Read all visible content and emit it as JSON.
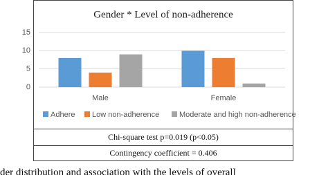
{
  "chart_data": {
    "type": "bar",
    "title": "Gender * Level of non-adherence",
    "categories": [
      "Male",
      "Female"
    ],
    "series": [
      {
        "name": "Adhere",
        "color": "#5b9bd5",
        "values": [
          8,
          10
        ]
      },
      {
        "name": "Low non-adherence",
        "color": "#ed7d31",
        "values": [
          4,
          8
        ]
      },
      {
        "name": "Moderate and high non-adherence",
        "color": "#a5a5a5",
        "values": [
          9,
          1
        ]
      }
    ],
    "ylim": [
      0,
      15
    ],
    "yticks": [
      0,
      5,
      10,
      15
    ],
    "grid": true,
    "legend": "bottom"
  },
  "table": {
    "rows": [
      "Chi-square test p=0.019 (p<0.05)",
      "Contingency coefficient = 0.406"
    ]
  },
  "caption": "der distribution and association with the levels of overall"
}
